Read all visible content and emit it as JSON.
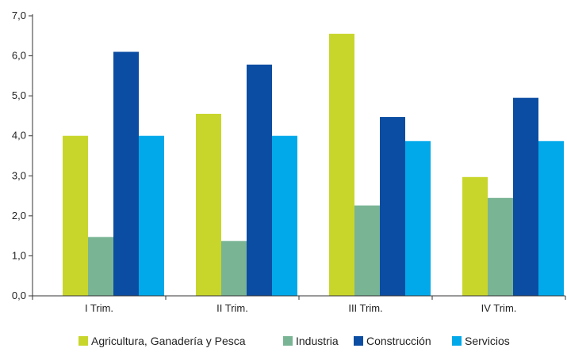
{
  "chart_data": {
    "type": "bar",
    "categories": [
      "I Trim.",
      "II Trim.",
      "III Trim.",
      "IV Trim."
    ],
    "series": [
      {
        "name": "Agricultura, Ganadería y Pesca",
        "color": "#c8d62b",
        "values": [
          4.0,
          4.55,
          6.55,
          2.97
        ]
      },
      {
        "name": "Industria",
        "color": "#79b495",
        "values": [
          1.47,
          1.37,
          2.26,
          2.45
        ]
      },
      {
        "name": "Construcción",
        "color": "#0b4da2",
        "values": [
          6.1,
          5.78,
          4.47,
          4.95
        ]
      },
      {
        "name": "Servicios",
        "color": "#02a9ea",
        "values": [
          4.0,
          4.0,
          3.87,
          3.87
        ]
      }
    ],
    "ylim": [
      0,
      7
    ],
    "yticks": [
      0,
      1,
      2,
      3,
      4,
      5,
      6,
      7
    ],
    "ytick_labels": [
      "0,0",
      "1,0",
      "2,0",
      "3,0",
      "4,0",
      "5,0",
      "6,0",
      "7,0"
    ],
    "grid": false,
    "legend": "bottom",
    "title": "",
    "xlabel": "",
    "ylabel": ""
  }
}
